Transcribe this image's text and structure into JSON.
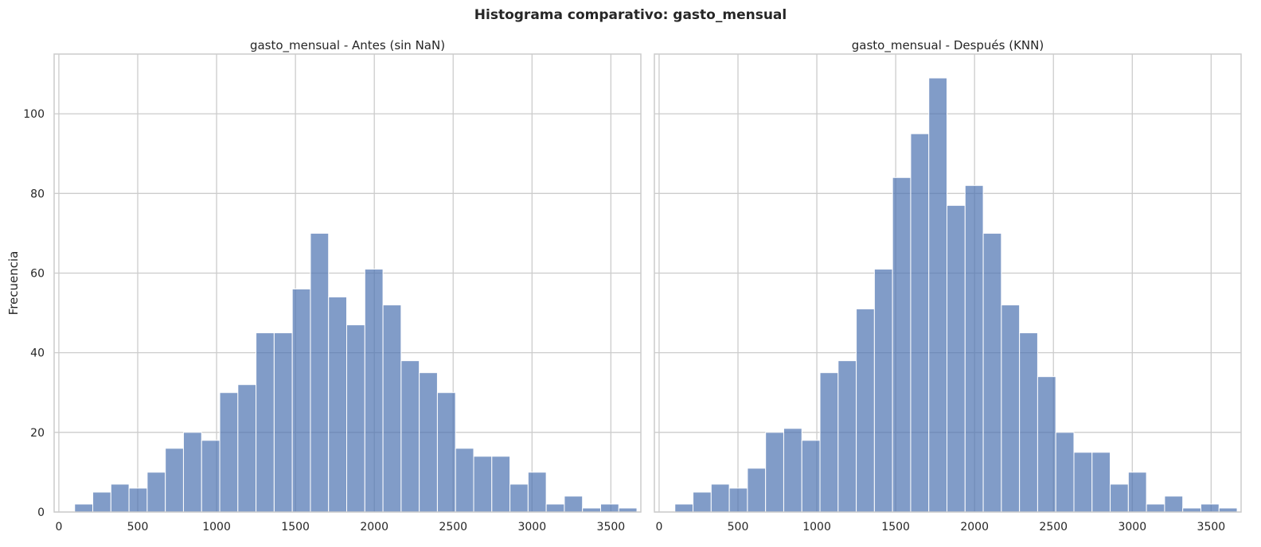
{
  "figure": {
    "suptitle": "Histograma comparativo: gasto_mensual"
  },
  "style": {
    "bar_color": "#4c72b0",
    "bar_opacity": 0.7,
    "grid_color": "#cccccc"
  },
  "chart_data": [
    {
      "type": "bar",
      "title": "gasto_mensual - Antes (sin NaN)",
      "xlabel": "",
      "ylabel": "Frecuencia",
      "bin_start": 100,
      "bin_width": 115,
      "counts": [
        2,
        5,
        7,
        6,
        10,
        16,
        20,
        18,
        30,
        32,
        45,
        45,
        56,
        70,
        54,
        47,
        61,
        52,
        38,
        35,
        30,
        16,
        14,
        14,
        7,
        10,
        2,
        4,
        1,
        2,
        1
      ],
      "xlim": [
        -30,
        3690
      ],
      "ylim": [
        0,
        115
      ],
      "xticks": [
        0,
        500,
        1000,
        1500,
        2000,
        2500,
        3000,
        3500
      ],
      "yticks": [
        0,
        20,
        40,
        60,
        80,
        100
      ],
      "grid": true
    },
    {
      "type": "bar",
      "title": "gasto_mensual - Después (KNN)",
      "xlabel": "",
      "ylabel": "",
      "bin_start": 100,
      "bin_width": 115,
      "counts": [
        2,
        5,
        7,
        6,
        11,
        20,
        21,
        18,
        35,
        38,
        51,
        61,
        84,
        95,
        109,
        77,
        82,
        70,
        52,
        45,
        34,
        20,
        15,
        15,
        7,
        10,
        2,
        4,
        1,
        2,
        1
      ],
      "xlim": [
        -30,
        3690
      ],
      "ylim": [
        0,
        115
      ],
      "xticks": [
        0,
        500,
        1000,
        1500,
        2000,
        2500,
        3000,
        3500
      ],
      "yticks": [
        0,
        20,
        40,
        60,
        80,
        100
      ],
      "grid": true
    }
  ]
}
